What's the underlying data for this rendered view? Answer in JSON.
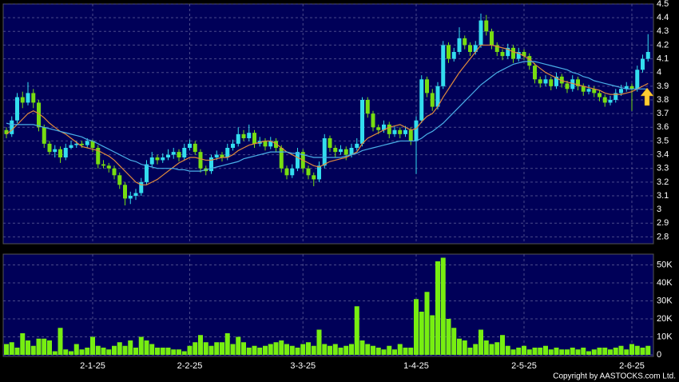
{
  "chart_data": {
    "type": "candlestick",
    "copyright": "Copyright by AASTOCKS.com Ltd.",
    "grid": true,
    "up_color": "#33ddee",
    "down_color": "#77dd11",
    "volume_color": "#77ee11",
    "ylim": [
      2.75,
      4.5
    ],
    "yticks": [
      2.8,
      2.9,
      3,
      3.1,
      3.2,
      3.3,
      3.4,
      3.5,
      3.6,
      3.7,
      3.8,
      3.9,
      4,
      4.1,
      4.2,
      4.3,
      4.4,
      4.5
    ],
    "volume_ylim": [
      0,
      56000
    ],
    "volume_yticks": [
      0,
      {
        "value": 10000,
        "label": "10K"
      },
      {
        "value": 20000,
        "label": "20K"
      },
      {
        "value": 30000,
        "label": "30K"
      },
      {
        "value": 40000,
        "label": "40K"
      },
      {
        "value": 50000,
        "label": "50K"
      }
    ],
    "categories": [
      null,
      null,
      null,
      null,
      null,
      null,
      null,
      null,
      null,
      null,
      null,
      null,
      null,
      null,
      null,
      null,
      "2-1-25",
      null,
      null,
      null,
      null,
      null,
      null,
      null,
      null,
      null,
      null,
      null,
      null,
      null,
      null,
      null,
      null,
      null,
      "2-2-25",
      null,
      null,
      null,
      null,
      null,
      null,
      null,
      null,
      null,
      null,
      null,
      null,
      null,
      null,
      null,
      null,
      null,
      null,
      null,
      null,
      "3-3-25",
      null,
      null,
      null,
      null,
      null,
      null,
      null,
      null,
      null,
      null,
      null,
      null,
      null,
      null,
      null,
      null,
      null,
      null,
      null,
      null,
      "1-4-25",
      null,
      null,
      null,
      null,
      null,
      null,
      null,
      null,
      null,
      null,
      null,
      null,
      null,
      null,
      null,
      null,
      null,
      null,
      null,
      "2-5-25",
      null,
      null,
      null,
      null,
      null,
      null,
      null,
      null,
      null,
      null,
      null,
      null,
      null,
      null,
      null,
      null,
      null,
      null,
      null,
      "2-6-25",
      null,
      null,
      null
    ],
    "ohlc": [
      [
        3.58,
        3.6,
        3.52,
        3.55
      ],
      [
        3.55,
        3.68,
        3.53,
        3.65
      ],
      [
        3.65,
        3.85,
        3.63,
        3.82
      ],
      [
        3.82,
        3.86,
        3.74,
        3.78
      ],
      [
        3.78,
        3.93,
        3.76,
        3.85
      ],
      [
        3.85,
        3.88,
        3.74,
        3.78
      ],
      [
        3.78,
        3.8,
        3.57,
        3.6
      ],
      [
        3.6,
        3.62,
        3.45,
        3.48
      ],
      [
        3.48,
        3.5,
        3.4,
        3.42
      ],
      [
        3.42,
        3.47,
        3.38,
        3.44
      ],
      [
        3.44,
        3.46,
        3.34,
        3.38
      ],
      [
        3.38,
        3.48,
        3.36,
        3.45
      ],
      [
        3.45,
        3.5,
        3.44,
        3.47
      ],
      [
        3.47,
        3.5,
        3.45,
        3.48
      ],
      [
        3.48,
        3.5,
        3.45,
        3.47
      ],
      [
        3.47,
        3.52,
        3.45,
        3.5
      ],
      [
        3.5,
        3.51,
        3.42,
        3.45
      ],
      [
        3.45,
        3.47,
        3.3,
        3.33
      ],
      [
        3.33,
        3.36,
        3.3,
        3.32
      ],
      [
        3.32,
        3.34,
        3.27,
        3.3
      ],
      [
        3.3,
        3.32,
        3.22,
        3.25
      ],
      [
        3.25,
        3.27,
        3.15,
        3.18
      ],
      [
        3.18,
        3.2,
        3.03,
        3.08
      ],
      [
        3.08,
        3.13,
        3.04,
        3.1
      ],
      [
        3.1,
        3.15,
        3.07,
        3.12
      ],
      [
        3.12,
        3.23,
        3.1,
        3.2
      ],
      [
        3.2,
        3.36,
        3.18,
        3.33
      ],
      [
        3.33,
        3.42,
        3.31,
        3.38
      ],
      [
        3.38,
        3.4,
        3.33,
        3.36
      ],
      [
        3.36,
        3.41,
        3.34,
        3.38
      ],
      [
        3.38,
        3.44,
        3.36,
        3.4
      ],
      [
        3.4,
        3.45,
        3.37,
        3.42
      ],
      [
        3.42,
        3.44,
        3.35,
        3.38
      ],
      [
        3.38,
        3.48,
        3.36,
        3.45
      ],
      [
        3.45,
        3.51,
        3.43,
        3.48
      ],
      [
        3.48,
        3.5,
        3.4,
        3.42
      ],
      [
        3.42,
        3.44,
        3.27,
        3.3
      ],
      [
        3.3,
        3.32,
        3.25,
        3.28
      ],
      [
        3.28,
        3.4,
        3.26,
        3.38
      ],
      [
        3.38,
        3.43,
        3.36,
        3.4
      ],
      [
        3.4,
        3.42,
        3.35,
        3.38
      ],
      [
        3.38,
        3.48,
        3.36,
        3.45
      ],
      [
        3.45,
        3.51,
        3.43,
        3.48
      ],
      [
        3.48,
        3.6,
        3.46,
        3.55
      ],
      [
        3.55,
        3.58,
        3.5,
        3.52
      ],
      [
        3.52,
        3.62,
        3.5,
        3.56
      ],
      [
        3.56,
        3.58,
        3.45,
        3.48
      ],
      [
        3.48,
        3.53,
        3.46,
        3.5
      ],
      [
        3.5,
        3.52,
        3.43,
        3.46
      ],
      [
        3.46,
        3.53,
        3.44,
        3.5
      ],
      [
        3.5,
        3.52,
        3.42,
        3.45
      ],
      [
        3.45,
        3.47,
        3.27,
        3.3
      ],
      [
        3.3,
        3.32,
        3.22,
        3.25
      ],
      [
        3.25,
        3.33,
        3.23,
        3.3
      ],
      [
        3.3,
        3.45,
        3.28,
        3.42
      ],
      [
        3.42,
        3.44,
        3.27,
        3.3
      ],
      [
        3.3,
        3.32,
        3.22,
        3.25
      ],
      [
        3.25,
        3.27,
        3.17,
        3.22
      ],
      [
        3.22,
        3.35,
        3.2,
        3.32
      ],
      [
        3.32,
        3.55,
        3.3,
        3.52
      ],
      [
        3.52,
        3.54,
        3.42,
        3.45
      ],
      [
        3.45,
        3.47,
        3.38,
        3.42
      ],
      [
        3.42,
        3.47,
        3.4,
        3.44
      ],
      [
        3.44,
        3.46,
        3.36,
        3.4
      ],
      [
        3.4,
        3.48,
        3.38,
        3.45
      ],
      [
        3.45,
        3.52,
        3.43,
        3.48
      ],
      [
        3.48,
        3.82,
        3.46,
        3.8
      ],
      [
        3.8,
        3.82,
        3.67,
        3.7
      ],
      [
        3.7,
        3.72,
        3.57,
        3.6
      ],
      [
        3.6,
        3.62,
        3.55,
        3.58
      ],
      [
        3.58,
        3.65,
        3.56,
        3.62
      ],
      [
        3.62,
        3.64,
        3.52,
        3.55
      ],
      [
        3.55,
        3.61,
        3.53,
        3.58
      ],
      [
        3.58,
        3.6,
        3.52,
        3.55
      ],
      [
        3.55,
        3.61,
        3.53,
        3.58
      ],
      [
        3.58,
        3.6,
        3.47,
        3.5
      ],
      [
        3.5,
        3.68,
        3.26,
        3.65
      ],
      [
        3.65,
        3.98,
        3.63,
        3.95
      ],
      [
        3.95,
        3.97,
        3.82,
        3.85
      ],
      [
        3.85,
        3.88,
        3.72,
        3.75
      ],
      [
        3.75,
        3.93,
        3.73,
        3.9
      ],
      [
        3.9,
        4.23,
        3.88,
        4.2
      ],
      [
        4.2,
        4.22,
        4.07,
        4.1
      ],
      [
        4.1,
        4.18,
        4.08,
        4.15
      ],
      [
        4.15,
        4.33,
        4.13,
        4.25
      ],
      [
        4.25,
        4.27,
        4.17,
        4.2
      ],
      [
        4.2,
        4.22,
        4.12,
        4.15
      ],
      [
        4.15,
        4.23,
        4.13,
        4.2
      ],
      [
        4.2,
        4.43,
        4.18,
        4.38
      ],
      [
        4.38,
        4.42,
        4.27,
        4.3
      ],
      [
        4.3,
        4.32,
        4.17,
        4.2
      ],
      [
        4.2,
        4.22,
        4.12,
        4.15
      ],
      [
        4.15,
        4.17,
        4.09,
        4.12
      ],
      [
        4.12,
        4.21,
        4.1,
        4.18
      ],
      [
        4.18,
        4.2,
        4.07,
        4.1
      ],
      [
        4.1,
        4.18,
        4.08,
        4.15
      ],
      [
        4.15,
        4.17,
        4.09,
        4.12
      ],
      [
        4.12,
        4.14,
        4.02,
        4.05
      ],
      [
        4.05,
        4.07,
        3.92,
        3.95
      ],
      [
        3.95,
        3.97,
        3.89,
        3.92
      ],
      [
        3.92,
        3.98,
        3.9,
        3.95
      ],
      [
        3.95,
        3.97,
        3.87,
        3.9
      ],
      [
        3.9,
        4.0,
        3.88,
        3.97
      ],
      [
        3.97,
        3.99,
        3.89,
        3.92
      ],
      [
        3.92,
        3.94,
        3.85,
        3.88
      ],
      [
        3.88,
        3.98,
        3.86,
        3.95
      ],
      [
        3.95,
        3.97,
        3.87,
        3.9
      ],
      [
        3.9,
        3.92,
        3.83,
        3.86
      ],
      [
        3.86,
        3.91,
        3.84,
        3.88
      ],
      [
        3.88,
        3.9,
        3.82,
        3.85
      ],
      [
        3.85,
        3.87,
        3.79,
        3.82
      ],
      [
        3.82,
        3.84,
        3.75,
        3.78
      ],
      [
        3.78,
        3.83,
        3.76,
        3.8
      ],
      [
        3.8,
        3.88,
        3.78,
        3.85
      ],
      [
        3.85,
        3.91,
        3.83,
        3.88
      ],
      [
        3.88,
        3.93,
        3.86,
        3.9
      ],
      [
        3.9,
        3.92,
        3.72,
        3.88
      ],
      [
        3.88,
        4.05,
        3.86,
        4.02
      ],
      [
        4.02,
        4.13,
        4.0,
        4.1
      ],
      [
        4.1,
        4.28,
        4.08,
        4.15
      ]
    ],
    "volume": [
      6000,
      7000,
      4000,
      12000,
      8000,
      5000,
      9000,
      9000,
      8000,
      2000,
      15000,
      3000,
      2000,
      6000,
      3000,
      4000,
      10000,
      5000,
      4000,
      3000,
      5000,
      7000,
      5000,
      8000,
      4000,
      10000,
      8000,
      6000,
      4000,
      4000,
      4000,
      3000,
      3000,
      2000,
      5000,
      7000,
      11000,
      7000,
      5000,
      7000,
      7000,
      12000,
      6000,
      10000,
      7000,
      4000,
      5000,
      4000,
      5000,
      6000,
      7000,
      8000,
      6000,
      5000,
      4000,
      6000,
      7000,
      5000,
      14000,
      6000,
      5000,
      6000,
      4000,
      5000,
      6000,
      27000,
      8000,
      6000,
      5000,
      4000,
      3000,
      5000,
      3000,
      6000,
      4000,
      4000,
      31000,
      24000,
      35000,
      22000,
      52000,
      54000,
      20000,
      15000,
      9000,
      8000,
      4000,
      6000,
      14000,
      8000,
      6000,
      7000,
      11000,
      5000,
      3000,
      4000,
      5000,
      3000,
      4000,
      4000,
      5000,
      3000,
      4000,
      3000,
      3000,
      4000,
      3000,
      4000,
      2000,
      3000,
      4000,
      4000,
      3000,
      4000,
      5000,
      3000,
      6000,
      5000,
      4000,
      5000
    ],
    "ma_lines": [
      {
        "color": "#e08a3c",
        "values": [
          3.55,
          3.58,
          3.62,
          3.66,
          3.7,
          3.72,
          3.7,
          3.67,
          3.63,
          3.6,
          3.57,
          3.55,
          3.52,
          3.49,
          3.46,
          3.45,
          3.44,
          3.43,
          3.41,
          3.39,
          3.36,
          3.32,
          3.28,
          3.24,
          3.2,
          3.18,
          3.18,
          3.2,
          3.22,
          3.25,
          3.28,
          3.31,
          3.34,
          3.36,
          3.38,
          3.38,
          3.37,
          3.36,
          3.36,
          3.37,
          3.38,
          3.38,
          3.4,
          3.43,
          3.45,
          3.47,
          3.48,
          3.49,
          3.5,
          3.5,
          3.48,
          3.45,
          3.42,
          3.4,
          3.38,
          3.36,
          3.34,
          3.32,
          3.31,
          3.33,
          3.35,
          3.36,
          3.37,
          3.38,
          3.4,
          3.42,
          3.48,
          3.52,
          3.54,
          3.56,
          3.58,
          3.6,
          3.61,
          3.62,
          3.6,
          3.58,
          3.59,
          3.64,
          3.68,
          3.7,
          3.75,
          3.82,
          3.88,
          3.94,
          4.0,
          4.05,
          4.1,
          4.15,
          4.2,
          4.2,
          4.2,
          4.19,
          4.18,
          4.17,
          4.15,
          4.14,
          4.12,
          4.1,
          4.06,
          4.03,
          4.0,
          3.98,
          3.96,
          3.94,
          3.93,
          3.92,
          3.91,
          3.9,
          3.89,
          3.88,
          3.87,
          3.85,
          3.84,
          3.84,
          3.84,
          3.85,
          3.86,
          3.88,
          3.9,
          3.92
        ]
      },
      {
        "color": "#4ab0e8",
        "values": [
          3.63,
          3.62,
          3.62,
          3.62,
          3.62,
          3.62,
          3.61,
          3.6,
          3.59,
          3.58,
          3.57,
          3.56,
          3.55,
          3.54,
          3.53,
          3.51,
          3.5,
          3.48,
          3.46,
          3.44,
          3.42,
          3.4,
          3.38,
          3.36,
          3.35,
          3.33,
          3.32,
          3.31,
          3.3,
          3.3,
          3.3,
          3.3,
          3.29,
          3.29,
          3.28,
          3.28,
          3.28,
          3.29,
          3.3,
          3.31,
          3.32,
          3.33,
          3.34,
          3.35,
          3.37,
          3.38,
          3.39,
          3.4,
          3.41,
          3.42,
          3.42,
          3.42,
          3.42,
          3.41,
          3.41,
          3.4,
          3.39,
          3.38,
          3.38,
          3.38,
          3.38,
          3.38,
          3.38,
          3.39,
          3.4,
          3.41,
          3.43,
          3.44,
          3.45,
          3.46,
          3.47,
          3.48,
          3.49,
          3.5,
          3.5,
          3.5,
          3.5,
          3.52,
          3.55,
          3.57,
          3.6,
          3.63,
          3.67,
          3.71,
          3.75,
          3.79,
          3.83,
          3.87,
          3.91,
          3.94,
          3.97,
          4.0,
          4.02,
          4.04,
          4.06,
          4.07,
          4.08,
          4.08,
          4.08,
          4.07,
          4.06,
          4.05,
          4.04,
          4.03,
          4.02,
          4.0,
          3.99,
          3.97,
          3.96,
          3.94,
          3.93,
          3.92,
          3.91,
          3.9,
          3.89,
          3.88,
          3.88,
          3.88,
          3.88,
          3.88
        ]
      }
    ]
  }
}
